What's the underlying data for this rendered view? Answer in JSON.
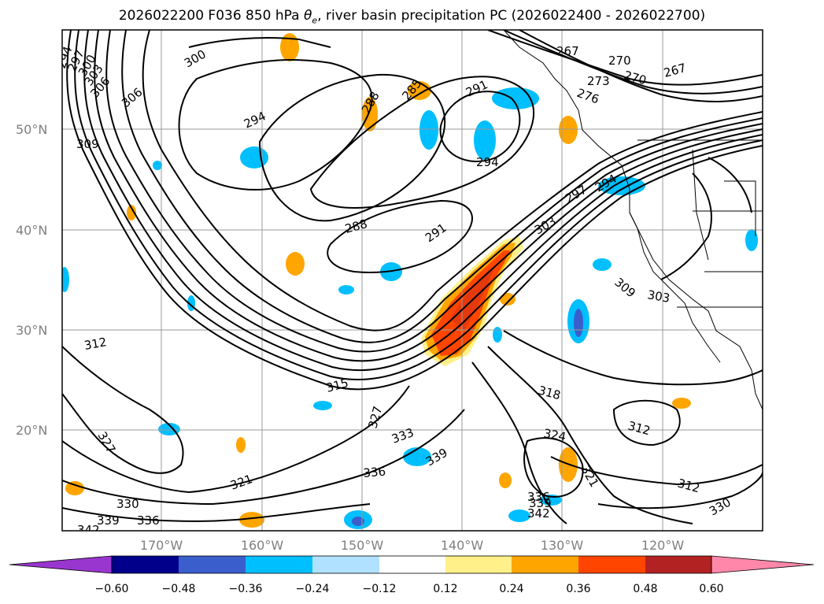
{
  "title_prefix": "2026022200 F036 850 hPa ",
  "title_symbol": "θ",
  "title_subscript": "e",
  "title_suffix": ", river basin precipitation PC (2026022400 - 2026022700)",
  "lat_labels": [
    "50°N",
    "40°N",
    "30°N",
    "20°N"
  ],
  "lon_labels": [
    "170°W",
    "160°W",
    "150°W",
    "140°W",
    "130°W",
    "120°W"
  ],
  "colorbar": {
    "ticks": [
      "−0.60",
      "−0.48",
      "−0.36",
      "−0.24",
      "−0.12",
      "0.12",
      "0.24",
      "0.36",
      "0.48",
      "0.60"
    ],
    "colors": [
      "#9a36d0",
      "#00008b",
      "#3a5fcd",
      "#00bfff",
      "#b0e2ff",
      "#ffffff",
      "#fff08a",
      "#ffa500",
      "#ff4500",
      "#b22222",
      "#ff88aa"
    ]
  },
  "contour_labels": [
    "294",
    "297",
    "300",
    "303",
    "306",
    "306",
    "300",
    "309",
    "294",
    "288",
    "285",
    "291",
    "267",
    "270",
    "270",
    "267",
    "273",
    "276",
    "294",
    "297",
    "294",
    "303",
    "288",
    "291",
    "309",
    "303",
    "312",
    "315",
    "318",
    "312",
    "327",
    "333",
    "324",
    "339",
    "336",
    "327",
    "321",
    "330",
    "339",
    "336",
    "342",
    "321",
    "312",
    "330",
    "336",
    "339",
    "342"
  ]
}
